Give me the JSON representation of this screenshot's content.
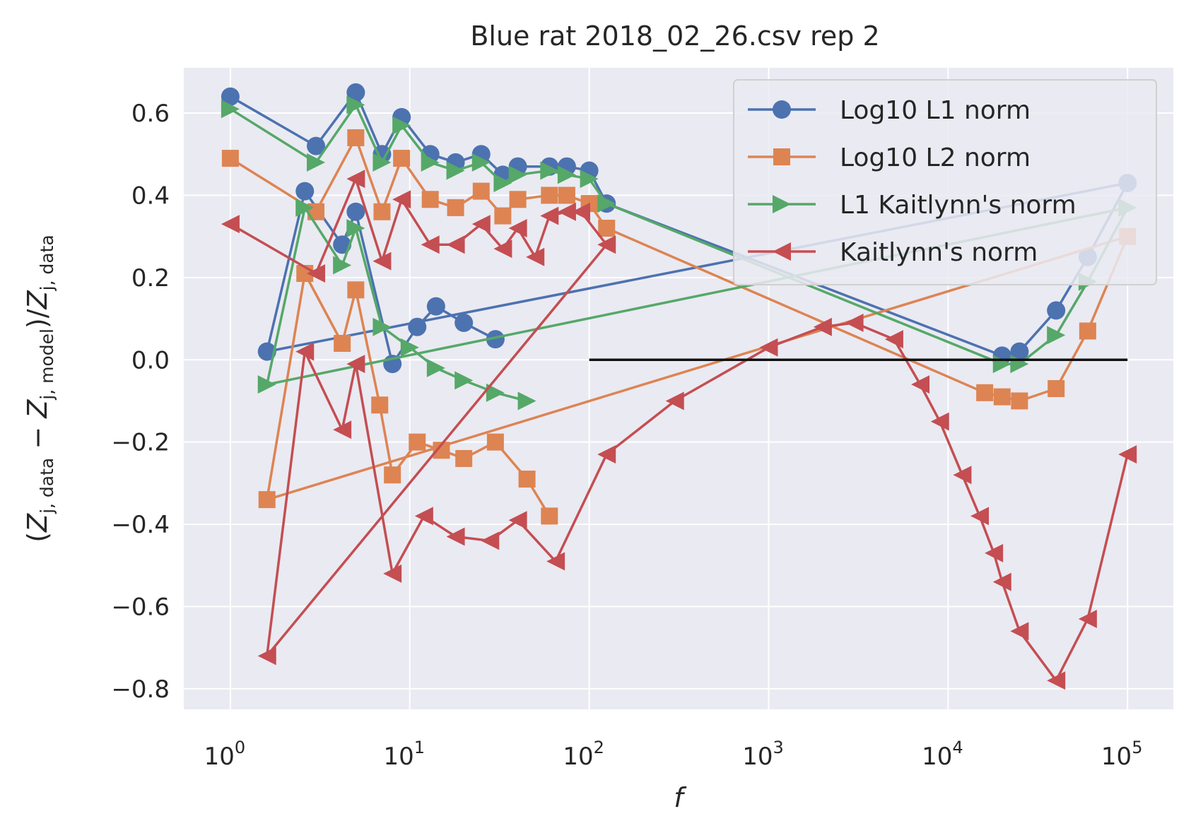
{
  "chart_data": {
    "type": "line",
    "title": "Blue rat 2018_02_26.csv rep 2",
    "xlabel": "f",
    "ylabel_parts": {
      "open": "(",
      "z1": "Z",
      "sub1": "j, data",
      "minus": " − ",
      "z2": "Z",
      "sub2": "j, model",
      "slash": ")/",
      "z3": "Z",
      "sub3": "j, data"
    },
    "x_scale": "log",
    "xlim": [
      0.55,
      180000
    ],
    "ylim": [
      -0.85,
      0.71
    ],
    "x_ticks": [
      {
        "value": 1,
        "base": "10",
        "exp": "0"
      },
      {
        "value": 10,
        "base": "10",
        "exp": "1"
      },
      {
        "value": 100,
        "base": "10",
        "exp": "2"
      },
      {
        "value": 1000,
        "base": "10",
        "exp": "3"
      },
      {
        "value": 10000,
        "base": "10",
        "exp": "4"
      },
      {
        "value": 100000,
        "base": "10",
        "exp": "5"
      }
    ],
    "y_ticks": [
      {
        "value": 0.6,
        "label": "0.6"
      },
      {
        "value": 0.4,
        "label": "0.4"
      },
      {
        "value": 0.2,
        "label": "0.2"
      },
      {
        "value": 0.0,
        "label": "0.0"
      },
      {
        "value": -0.2,
        "label": "−0.2"
      },
      {
        "value": -0.4,
        "label": "−0.4"
      },
      {
        "value": -0.6,
        "label": "−0.6"
      },
      {
        "value": -0.8,
        "label": "−0.8"
      }
    ],
    "grid": true,
    "legend_position": "top-right",
    "reference_line": {
      "x": [
        100,
        100000
      ],
      "y": [
        0,
        0
      ],
      "color": "#111111"
    },
    "series": [
      {
        "name": "Log10 L1 norm",
        "color": "#4c72b0",
        "marker": "circle",
        "x": [
          1,
          3,
          5,
          7,
          9,
          13,
          18,
          25,
          33,
          40,
          60,
          75,
          100,
          125,
          20000,
          25000,
          40000,
          60000,
          100000,
          1.6,
          2.6,
          4.2,
          5,
          8,
          11,
          14,
          20,
          30
        ],
        "y": [
          0.64,
          0.52,
          0.65,
          0.5,
          0.59,
          0.5,
          0.48,
          0.5,
          0.45,
          0.47,
          0.47,
          0.47,
          0.46,
          0.38,
          0.01,
          0.02,
          0.12,
          0.25,
          0.43,
          0.02,
          0.41,
          0.28,
          0.36,
          -0.01,
          0.08,
          0.13,
          0.09,
          0.05
        ]
      },
      {
        "name": "Log10 L2 norm",
        "color": "#dd8452",
        "marker": "square",
        "x": [
          1,
          3,
          5,
          7,
          9,
          13,
          18,
          25,
          33,
          40,
          60,
          75,
          100,
          125,
          16000,
          20000,
          25000,
          40000,
          60000,
          100000,
          1.6,
          2.6,
          4.2,
          5,
          6.8,
          8,
          11,
          15,
          20,
          30,
          45,
          60
        ],
        "y": [
          0.49,
          0.36,
          0.54,
          0.36,
          0.49,
          0.39,
          0.37,
          0.41,
          0.35,
          0.39,
          0.4,
          0.4,
          0.38,
          0.32,
          -0.08,
          -0.09,
          -0.1,
          -0.07,
          0.07,
          0.3,
          -0.34,
          0.21,
          0.04,
          0.17,
          -0.11,
          -0.28,
          -0.2,
          -0.22,
          -0.24,
          -0.2,
          -0.29,
          -0.38
        ]
      },
      {
        "name": "L1 Kaitlynn's norm",
        "color": "#55a868",
        "marker": "triangle-right",
        "x": [
          1,
          3,
          5,
          7,
          9,
          13,
          18,
          25,
          33,
          40,
          60,
          75,
          100,
          125,
          20000,
          25000,
          40000,
          60000,
          100000,
          1.6,
          2.6,
          4.2,
          5,
          7,
          10,
          14,
          20,
          30,
          45
        ],
        "y": [
          0.61,
          0.48,
          0.62,
          0.48,
          0.57,
          0.48,
          0.46,
          0.48,
          0.43,
          0.45,
          0.46,
          0.45,
          0.44,
          0.38,
          -0.01,
          -0.01,
          0.06,
          0.19,
          0.37,
          -0.06,
          0.37,
          0.23,
          0.32,
          0.08,
          0.03,
          -0.02,
          -0.05,
          -0.08,
          -0.1
        ]
      },
      {
        "name": "Kaitlynn's norm",
        "color": "#c44e52",
        "marker": "triangle-left",
        "x": [
          1,
          3,
          5,
          7,
          9,
          13,
          18,
          25,
          33,
          40,
          50,
          60,
          75,
          90,
          125,
          1.6,
          2.6,
          4.2,
          5,
          8,
          12,
          18,
          28,
          40,
          65,
          125,
          300,
          1000,
          2000,
          3000,
          5000,
          7000,
          9000,
          12000,
          15000,
          18000,
          20000,
          25000,
          40000,
          60000,
          100000
        ],
        "y": [
          0.33,
          0.21,
          0.44,
          0.24,
          0.39,
          0.28,
          0.28,
          0.33,
          0.27,
          0.32,
          0.25,
          0.35,
          0.36,
          0.36,
          0.28,
          -0.72,
          0.02,
          -0.17,
          -0.01,
          -0.52,
          -0.38,
          -0.43,
          -0.44,
          -0.39,
          -0.49,
          -0.23,
          -0.1,
          0.03,
          0.08,
          0.09,
          0.05,
          -0.06,
          -0.15,
          -0.28,
          -0.38,
          -0.47,
          -0.54,
          -0.66,
          -0.78,
          -0.63,
          -0.23
        ]
      }
    ]
  }
}
